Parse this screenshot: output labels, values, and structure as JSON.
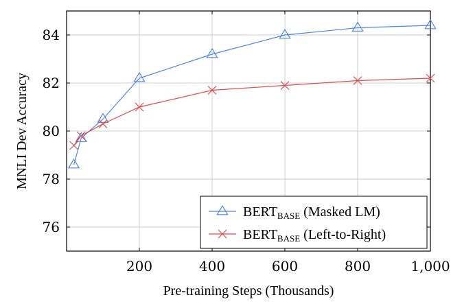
{
  "chart_data": {
    "type": "line",
    "title": "",
    "xlabel": "Pre-training Steps (Thousands)",
    "ylabel": "MNLI Dev Accuracy",
    "xlim": [
      0,
      1000
    ],
    "ylim": [
      75,
      85
    ],
    "xticks": [
      200,
      400,
      600,
      800,
      1000
    ],
    "xtick_labels": [
      "200",
      "400",
      "600",
      "800",
      "1,000"
    ],
    "yticks": [
      76,
      78,
      80,
      82,
      84
    ],
    "ytick_labels": [
      "76",
      "78",
      "80",
      "82",
      "84"
    ],
    "grid": true,
    "legend_position": "bottom-right",
    "series": [
      {
        "name_main": "BERT",
        "name_sub": "BASE",
        "name_suffix": " (Masked LM)",
        "color": "#4a86e8",
        "marker": "triangle",
        "x": [
          20,
          40,
          100,
          200,
          400,
          600,
          800,
          1000
        ],
        "y": [
          78.6,
          79.7,
          80.5,
          82.2,
          83.2,
          84.0,
          84.3,
          84.4
        ]
      },
      {
        "name_main": "BERT",
        "name_sub": "BASE",
        "name_suffix": " (Left-to-Right)",
        "color": "#e04a4a",
        "marker": "cross",
        "x": [
          20,
          40,
          100,
          200,
          400,
          600,
          800,
          1000
        ],
        "y": [
          79.4,
          79.8,
          80.3,
          81.0,
          81.7,
          81.9,
          82.1,
          82.2
        ]
      }
    ]
  }
}
